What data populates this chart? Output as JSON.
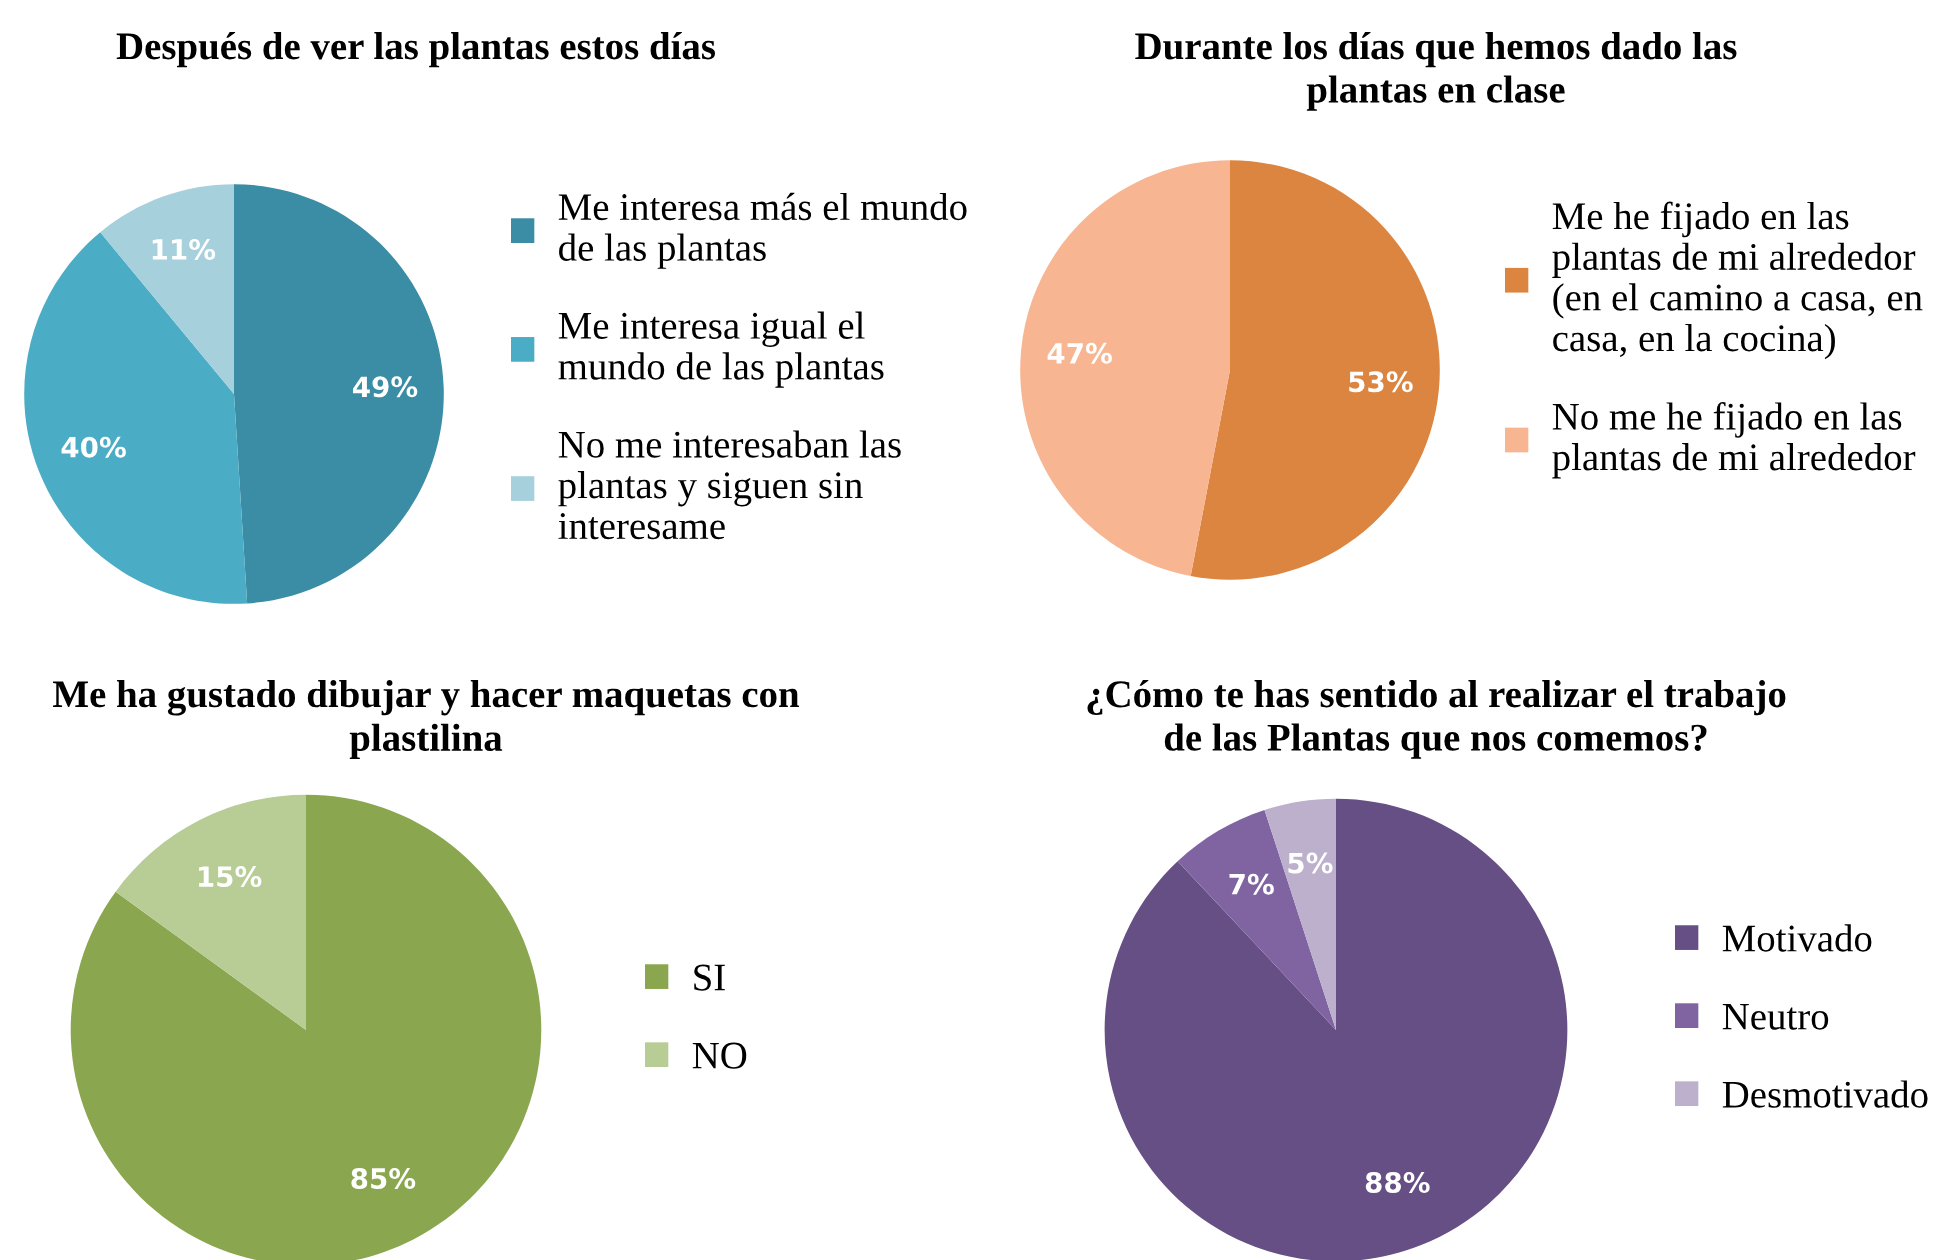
{
  "chart_data": [
    {
      "type": "pie",
      "title": "Después de ver las plantas estos días",
      "categories": [
        "Me interesa más el mundo de las plantas",
        "Me interesa igual el mundo de las plantas",
        "No me interesaban las plantas y siguen sin interesame"
      ],
      "values": [
        49,
        40,
        11
      ],
      "colors": [
        "#3b8ca5",
        "#4bacc6",
        "#a5d0dc"
      ],
      "value_labels": [
        "49%",
        "40%",
        "11%"
      ],
      "legend": "right"
    },
    {
      "type": "pie",
      "title": "Durante los días que hemos dado las plantas en clase",
      "categories": [
        "Me he fijado en las plantas de mi alrededor (en el camino a casa, en casa, en la cocina)",
        "No me he fijado en las plantas de mi alrededor"
      ],
      "values": [
        53,
        47
      ],
      "colors": [
        "#dc8540",
        "#f8b592"
      ],
      "value_labels": [
        "53%",
        "47%"
      ],
      "legend": "right"
    },
    {
      "type": "pie",
      "title": "Me ha gustado dibujar y hacer maquetas con plastilina",
      "categories": [
        "SI",
        "NO"
      ],
      "values": [
        85,
        15
      ],
      "colors": [
        "#8aa64e",
        "#b8cd96"
      ],
      "value_labels": [
        "85%",
        "15%"
      ],
      "legend": "right"
    },
    {
      "type": "pie",
      "title": "¿Cómo te has sentido al realizar el trabajo de las Plantas que nos comemos?",
      "categories": [
        "Motivado",
        "Neutro",
        "Desmotivado"
      ],
      "values": [
        88,
        7,
        5
      ],
      "colors": [
        "#664f84",
        "#8064a2",
        "#bcb0cd"
      ],
      "value_labels": [
        "88%",
        "7%",
        "5%"
      ],
      "legend": "right"
    }
  ]
}
